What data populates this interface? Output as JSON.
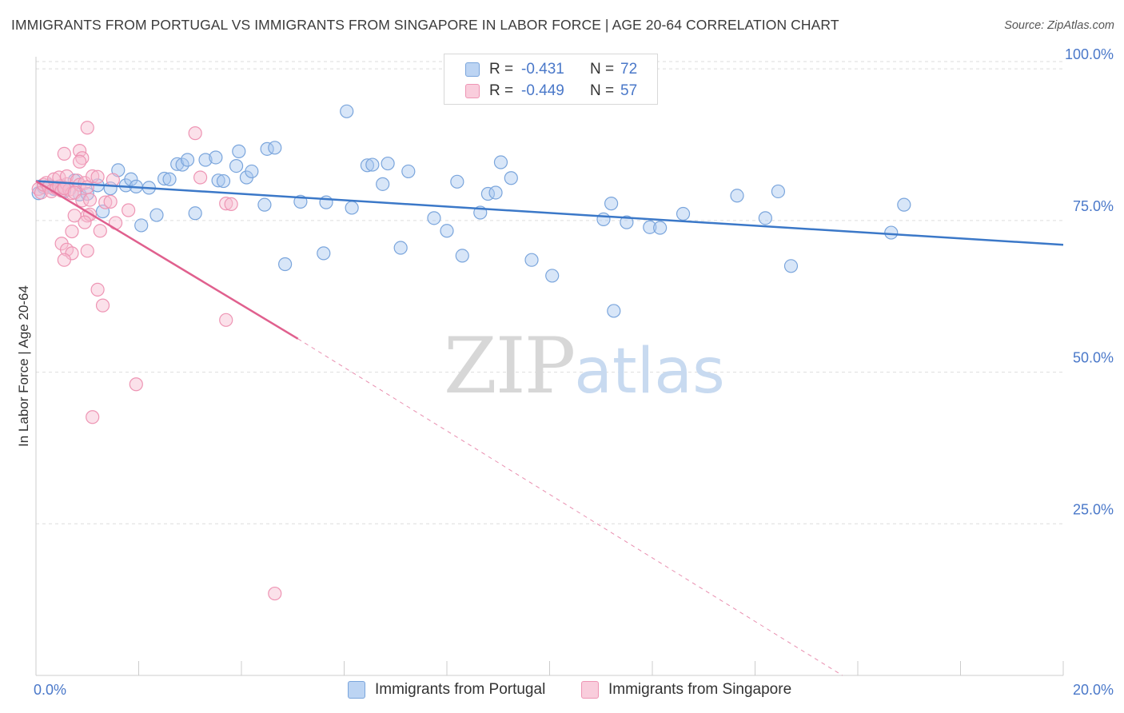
{
  "header": {
    "title": "IMMIGRANTS FROM PORTUGAL VS IMMIGRANTS FROM SINGAPORE IN LABOR FORCE | AGE 20-64 CORRELATION CHART",
    "source": "Source: ZipAtlas.com"
  },
  "watermark": {
    "zip": "ZIP",
    "atlas": "atlas"
  },
  "legend": {
    "portugal": {
      "r_label": "R =",
      "r_value": "-0.431",
      "n_label": "N =",
      "n_value": "72"
    },
    "singapore": {
      "r_label": "R =",
      "r_value": "-0.449",
      "n_label": "N =",
      "n_value": "57"
    }
  },
  "colors": {
    "portugal_fill": "#a8c8f0",
    "portugal_stroke": "#7aa5dc",
    "portugal_line": "#3b78c8",
    "singapore_fill": "#f6bcd0",
    "singapore_stroke": "#ee95b4",
    "singapore_line": "#e0608e",
    "tick_label": "#4a78c9",
    "grid": "#dddddd"
  },
  "chart_data": {
    "type": "scatter",
    "title": "IMMIGRANTS FROM PORTUGAL VS IMMIGRANTS FROM SINGAPORE IN LABOR FORCE | AGE 20-64 CORRELATION CHART",
    "xlabel": "",
    "ylabel": "In Labor Force | Age 20-64",
    "xlim": [
      0,
      20
    ],
    "ylim": [
      0,
      102
    ],
    "x_tick_labels": [
      "0.0%",
      "20.0%"
    ],
    "y_ticks": [
      25,
      50,
      75,
      100
    ],
    "y_tick_labels": [
      "25.0%",
      "50.0%",
      "75.0%",
      "100.0%"
    ],
    "grid": true,
    "legend_position": "top-center",
    "series": [
      {
        "name": "Immigrants from Portugal",
        "trend": {
          "x": [
            0,
            20
          ],
          "y": [
            81.5,
            71.0
          ]
        },
        "points": [
          [
            0.05,
            79.5
          ],
          [
            0.15,
            80.5
          ],
          [
            0.25,
            80.8
          ],
          [
            0.35,
            80.2
          ],
          [
            0.5,
            80.7
          ],
          [
            0.55,
            79.8
          ],
          [
            0.75,
            81.6
          ],
          [
            0.85,
            79.3
          ],
          [
            1.0,
            79.4
          ],
          [
            1.2,
            80.8
          ],
          [
            1.3,
            76.5
          ],
          [
            1.45,
            80.3
          ],
          [
            1.6,
            83.3
          ],
          [
            1.75,
            80.8
          ],
          [
            1.85,
            81.8
          ],
          [
            1.95,
            80.6
          ],
          [
            2.05,
            74.2
          ],
          [
            2.2,
            80.4
          ],
          [
            2.35,
            75.9
          ],
          [
            2.5,
            81.9
          ],
          [
            2.6,
            81.8
          ],
          [
            2.75,
            84.3
          ],
          [
            2.85,
            84.2
          ],
          [
            2.95,
            85.0
          ],
          [
            3.1,
            76.2
          ],
          [
            3.3,
            85.0
          ],
          [
            3.5,
            85.4
          ],
          [
            3.55,
            81.6
          ],
          [
            3.65,
            81.5
          ],
          [
            3.9,
            84.0
          ],
          [
            3.95,
            86.4
          ],
          [
            4.1,
            82.1
          ],
          [
            4.2,
            83.1
          ],
          [
            4.45,
            77.6
          ],
          [
            4.5,
            86.8
          ],
          [
            4.65,
            87.0
          ],
          [
            4.85,
            67.8
          ],
          [
            5.15,
            78.1
          ],
          [
            5.6,
            69.6
          ],
          [
            5.65,
            78.0
          ],
          [
            6.05,
            93.0
          ],
          [
            6.15,
            77.1
          ],
          [
            6.45,
            84.1
          ],
          [
            6.55,
            84.2
          ],
          [
            6.75,
            81.0
          ],
          [
            6.85,
            84.4
          ],
          [
            7.1,
            70.5
          ],
          [
            7.25,
            83.1
          ],
          [
            7.75,
            75.4
          ],
          [
            8.0,
            73.3
          ],
          [
            8.2,
            81.4
          ],
          [
            8.3,
            69.2
          ],
          [
            8.65,
            76.3
          ],
          [
            8.8,
            79.4
          ],
          [
            8.95,
            79.6
          ],
          [
            9.05,
            84.6
          ],
          [
            9.25,
            82.0
          ],
          [
            9.65,
            68.5
          ],
          [
            10.05,
            65.9
          ],
          [
            11.05,
            75.2
          ],
          [
            11.2,
            77.8
          ],
          [
            11.25,
            60.1
          ],
          [
            11.5,
            74.7
          ],
          [
            11.95,
            73.9
          ],
          [
            12.15,
            73.8
          ],
          [
            12.6,
            76.1
          ],
          [
            13.65,
            79.1
          ],
          [
            14.2,
            75.4
          ],
          [
            14.45,
            79.8
          ],
          [
            14.7,
            67.5
          ],
          [
            16.9,
            77.6
          ],
          [
            16.65,
            73.0
          ]
        ]
      },
      {
        "name": "Immigrants from Singapore",
        "trend": {
          "x": [
            0,
            5.1
          ],
          "y": [
            81.5,
            55.5
          ]
        },
        "trend_dashed": {
          "x": [
            5.1,
            15.7
          ],
          "y": [
            55.5,
            0
          ]
        },
        "points": [
          [
            0.05,
            80.2
          ],
          [
            0.1,
            79.6
          ],
          [
            0.15,
            80.9
          ],
          [
            0.2,
            81.2
          ],
          [
            0.25,
            80.5
          ],
          [
            0.3,
            79.8
          ],
          [
            0.35,
            81.8
          ],
          [
            0.4,
            80.3
          ],
          [
            0.45,
            80.6
          ],
          [
            0.5,
            79.9
          ],
          [
            0.55,
            80.4
          ],
          [
            0.6,
            81.0
          ],
          [
            0.65,
            80.1
          ],
          [
            0.7,
            79.5
          ],
          [
            0.45,
            82.1
          ],
          [
            0.6,
            82.3
          ],
          [
            0.8,
            81.6
          ],
          [
            0.85,
            80.9
          ],
          [
            0.95,
            81.2
          ],
          [
            0.55,
            80.3
          ],
          [
            1.0,
            80.5
          ],
          [
            0.75,
            79.6
          ],
          [
            0.9,
            78.3
          ],
          [
            0.75,
            75.8
          ],
          [
            0.7,
            73.2
          ],
          [
            0.5,
            71.2
          ],
          [
            0.6,
            70.2
          ],
          [
            0.7,
            69.6
          ],
          [
            0.55,
            68.5
          ],
          [
            0.55,
            86.0
          ],
          [
            0.85,
            86.5
          ],
          [
            0.9,
            85.3
          ],
          [
            0.85,
            84.7
          ],
          [
            1.0,
            75.8
          ],
          [
            1.05,
            76.0
          ],
          [
            0.95,
            74.7
          ],
          [
            1.05,
            78.4
          ],
          [
            1.1,
            82.3
          ],
          [
            1.2,
            82.2
          ],
          [
            1.25,
            73.3
          ],
          [
            1.35,
            78.0
          ],
          [
            1.45,
            78.1
          ],
          [
            1.5,
            81.7
          ],
          [
            1.55,
            74.6
          ],
          [
            1.0,
            70.0
          ],
          [
            1.2,
            63.6
          ],
          [
            1.3,
            61.0
          ],
          [
            1.8,
            76.7
          ],
          [
            1.95,
            48.0
          ],
          [
            1.1,
            42.6
          ],
          [
            3.1,
            89.4
          ],
          [
            3.2,
            82.1
          ],
          [
            3.7,
            77.8
          ],
          [
            3.8,
            77.7
          ],
          [
            3.7,
            58.6
          ],
          [
            1.0,
            90.3
          ],
          [
            4.65,
            13.5
          ]
        ]
      }
    ]
  },
  "bottom_legend": {
    "portugal": "Immigrants from Portugal",
    "singapore": "Immigrants from Singapore"
  }
}
